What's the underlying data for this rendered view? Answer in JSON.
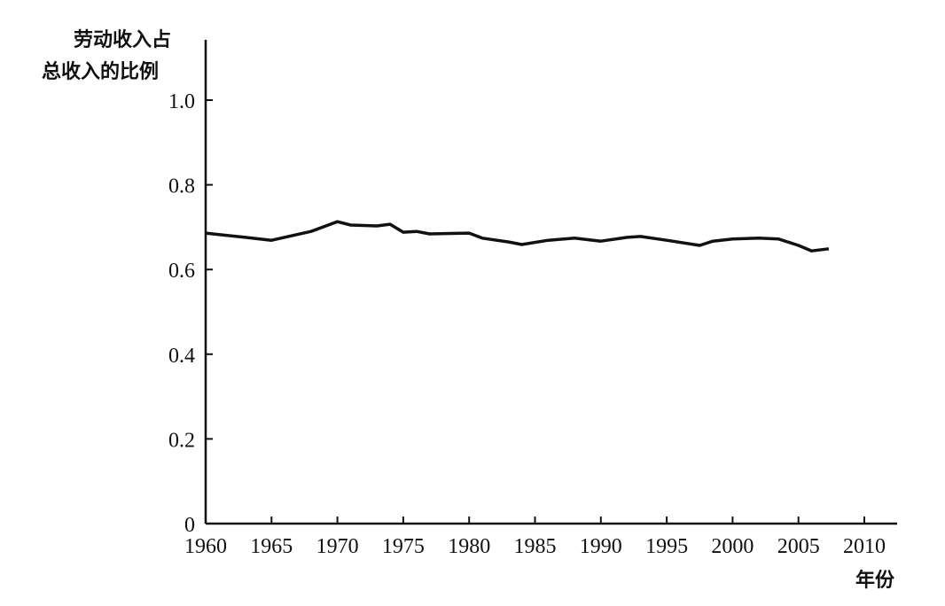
{
  "chart_data": {
    "type": "line",
    "title": "",
    "ylabel_lines": [
      "劳动收入占",
      "总收入的比例"
    ],
    "xlabel": "年份",
    "xlim": [
      1960,
      2012
    ],
    "ylim": [
      0,
      1.1
    ],
    "x_ticks": [
      "1960",
      "1965",
      "1970",
      "1975",
      "1980",
      "1985",
      "1990",
      "1995",
      "2000",
      "2005",
      "2010"
    ],
    "y_ticks": [
      "0",
      "0.2",
      "0.4",
      "0.6",
      "0.8",
      "1.0"
    ],
    "grid": false,
    "series": [
      {
        "name": "劳动收入占总收入的比例",
        "x": [
          1960,
          1963,
          1965,
          1968,
          1970,
          1971,
          1973,
          1974,
          1975,
          1976,
          1977,
          1980,
          1981,
          1983,
          1984,
          1986,
          1988,
          1990,
          1992,
          1993,
          1995,
          1997.5,
          1998.5,
          2000,
          2002,
          2003.5,
          2005,
          2006,
          2007.3
        ],
        "y": [
          0.686,
          0.676,
          0.669,
          0.69,
          0.713,
          0.705,
          0.703,
          0.707,
          0.688,
          0.69,
          0.684,
          0.686,
          0.674,
          0.665,
          0.659,
          0.669,
          0.674,
          0.667,
          0.676,
          0.678,
          0.669,
          0.657,
          0.667,
          0.672,
          0.674,
          0.672,
          0.657,
          0.644,
          0.649
        ]
      }
    ]
  }
}
